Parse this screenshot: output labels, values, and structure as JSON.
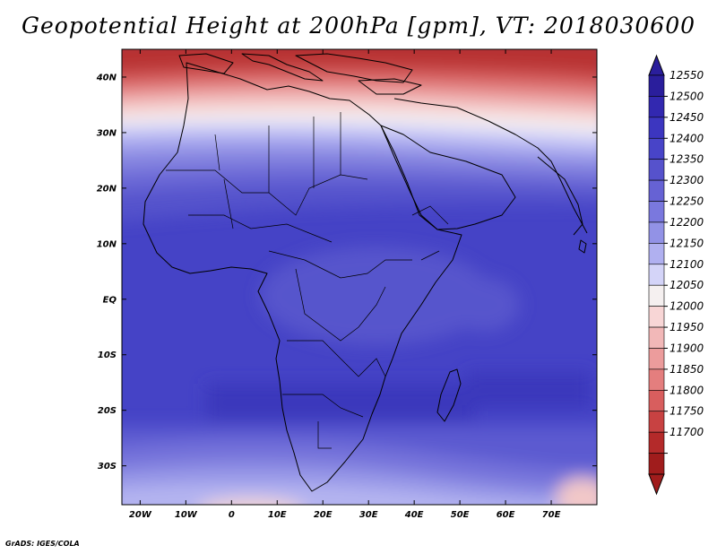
{
  "title": "Geopotential Height at 200hPa [gpm], VT: 2018030600",
  "credit": "GrADS: IGES/COLA",
  "map": {
    "lon_range": [
      -24,
      80
    ],
    "lat_range": [
      -37,
      45
    ],
    "lon_ticks": [
      {
        "value": -20,
        "label": "20W"
      },
      {
        "value": -10,
        "label": "10W"
      },
      {
        "value": 0,
        "label": "0"
      },
      {
        "value": 10,
        "label": "10E"
      },
      {
        "value": 20,
        "label": "20E"
      },
      {
        "value": 30,
        "label": "30E"
      },
      {
        "value": 40,
        "label": "40E"
      },
      {
        "value": 50,
        "label": "50E"
      },
      {
        "value": 60,
        "label": "60E"
      },
      {
        "value": 70,
        "label": "70E"
      }
    ],
    "lat_ticks": [
      {
        "value": 40,
        "label": "40N"
      },
      {
        "value": 30,
        "label": "30N"
      },
      {
        "value": 20,
        "label": "20N"
      },
      {
        "value": 10,
        "label": "10N"
      },
      {
        "value": 0,
        "label": "EQ"
      },
      {
        "value": -10,
        "label": "10S"
      },
      {
        "value": -20,
        "label": "20S"
      },
      {
        "value": -30,
        "label": "30S"
      }
    ]
  },
  "colorbar": {
    "levels": [
      "12550",
      "12500",
      "12450",
      "12400",
      "12350",
      "12300",
      "12250",
      "12200",
      "12150",
      "12100",
      "12050",
      "12000",
      "11950",
      "11900",
      "11850",
      "11800",
      "11750",
      "11700"
    ],
    "colors": [
      "#2a1e9c",
      "#3228b0",
      "#3c36c0",
      "#4844c8",
      "#5652cc",
      "#6662d4",
      "#7a78de",
      "#9292e6",
      "#b0b0f0",
      "#d4d4f8",
      "#f5f0f0",
      "#f8d6d6",
      "#f2b8b8",
      "#ec9c9c",
      "#e47e7e",
      "#d85e5e",
      "#c84242",
      "#b42a2a",
      "#a01c1c"
    ]
  }
}
